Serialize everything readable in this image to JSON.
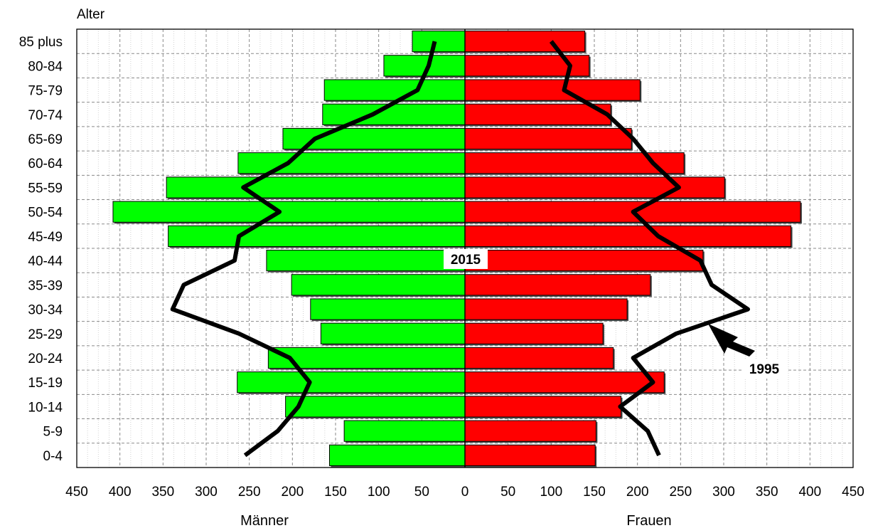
{
  "chart_data": {
    "type": "bar",
    "y_title": "Alter",
    "left_label": "Männer",
    "right_label": "Frauen",
    "age_groups": [
      "0-4",
      "5-9",
      "10-14",
      "15-19",
      "20-24",
      "25-29",
      "30-34",
      "35-39",
      "40-44",
      "45-49",
      "50-54",
      "55-59",
      "60-64",
      "65-69",
      "70-74",
      "75-79",
      "80-84",
      "85 plus"
    ],
    "series": [
      {
        "side": "left",
        "color": "#00ff00",
        "values": [
          157,
          140,
          208,
          264,
          228,
          167,
          179,
          201,
          230,
          344,
          408,
          346,
          263,
          211,
          165,
          163,
          94,
          61
        ]
      },
      {
        "side": "right",
        "color": "#ff0000",
        "values": [
          151,
          152,
          181,
          231,
          172,
          160,
          188,
          215,
          276,
          378,
          389,
          301,
          254,
          193,
          169,
          203,
          144,
          139
        ]
      }
    ],
    "overlay_lines": [
      {
        "side": "left",
        "color": "#000000",
        "values": [
          255,
          217,
          193,
          180,
          203,
          262,
          339,
          326,
          267,
          262,
          215,
          257,
          205,
          174,
          107,
          55,
          42,
          35
        ]
      },
      {
        "side": "right",
        "color": "#000000",
        "values": [
          225,
          212,
          180,
          218,
          195,
          245,
          328,
          286,
          273,
          224,
          195,
          248,
          218,
          195,
          165,
          115,
          122,
          100
        ]
      }
    ],
    "x_ticks_left": [
      "450",
      "400",
      "350",
      "300",
      "250",
      "200",
      "150",
      "100",
      "50"
    ],
    "x_ticks_center": "0",
    "x_ticks_right": [
      "50",
      "100",
      "150",
      "200",
      "250",
      "300",
      "350",
      "400",
      "450"
    ],
    "xlim": [
      -450,
      450
    ],
    "annotations": {
      "center": "2015",
      "arrow": "1995"
    },
    "grid": true
  }
}
